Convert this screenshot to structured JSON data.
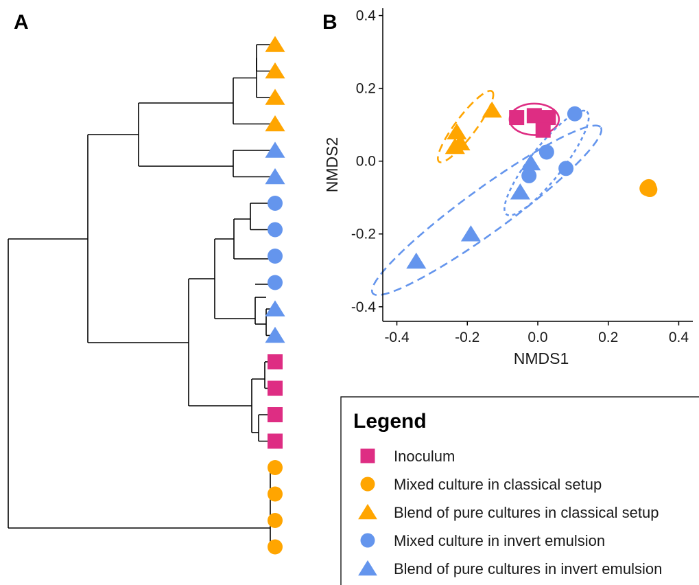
{
  "colors": {
    "inoculum": "#DE2D83",
    "classical": "#FFA500",
    "invert": "#6495ED"
  },
  "panel_a": {
    "label": "A"
  },
  "panel_b": {
    "label": "B"
  },
  "chart_data": [
    {
      "type": "dendrogram",
      "panel": "A",
      "leaves": [
        {
          "group": "blend_classical"
        },
        {
          "group": "blend_classical"
        },
        {
          "group": "blend_classical"
        },
        {
          "group": "blend_classical"
        },
        {
          "group": "blend_invert"
        },
        {
          "group": "blend_invert"
        },
        {
          "group": "mixed_invert"
        },
        {
          "group": "mixed_invert"
        },
        {
          "group": "mixed_invert"
        },
        {
          "group": "mixed_invert"
        },
        {
          "group": "blend_invert"
        },
        {
          "group": "blend_invert"
        },
        {
          "group": "inoculum"
        },
        {
          "group": "inoculum"
        },
        {
          "group": "inoculum"
        },
        {
          "group": "inoculum"
        },
        {
          "group": "mixed_classical"
        },
        {
          "group": "mixed_classical"
        },
        {
          "group": "mixed_classical"
        },
        {
          "group": "mixed_classical"
        }
      ]
    },
    {
      "type": "scatter",
      "panel": "B",
      "xlabel": "NMDS1",
      "ylabel": "NMDS2",
      "xlim": [
        -0.44,
        0.44
      ],
      "ylim": [
        -0.44,
        0.42
      ],
      "xticks": [
        "-0.4",
        "-0.2",
        "0.0",
        "0.2",
        "0.4"
      ],
      "xtick_values": [
        -0.4,
        -0.2,
        0.0,
        0.2,
        0.4
      ],
      "yticks": [
        "0.4",
        "0.2",
        "0.0",
        "-0.2",
        "-0.4"
      ],
      "ytick_values": [
        0.4,
        0.2,
        0.0,
        -0.2,
        -0.4
      ],
      "grid": false,
      "series": [
        {
          "group": "inoculum",
          "points": [
            [
              -0.06,
              0.12
            ],
            [
              -0.01,
              0.125
            ],
            [
              0.03,
              0.12
            ],
            [
              0.015,
              0.085
            ]
          ]
        },
        {
          "group": "mixed_classical",
          "points": [
            [
              0.31,
              -0.075
            ],
            [
              0.315,
              -0.07
            ],
            [
              0.318,
              -0.078
            ],
            [
              0.312,
              -0.072
            ]
          ]
        },
        {
          "group": "blend_classical",
          "points": [
            [
              -0.23,
              0.08
            ],
            [
              -0.22,
              0.05
            ],
            [
              -0.235,
              0.04
            ],
            [
              -0.13,
              0.14
            ]
          ]
        },
        {
          "group": "mixed_invert",
          "points": [
            [
              0.105,
              0.13
            ],
            [
              0.025,
              0.025
            ],
            [
              -0.025,
              -0.04
            ],
            [
              0.08,
              -0.02
            ]
          ]
        },
        {
          "group": "blend_invert",
          "points": [
            [
              -0.02,
              -0.005
            ],
            [
              -0.05,
              -0.085
            ],
            [
              -0.19,
              -0.2
            ],
            [
              -0.345,
              -0.275
            ]
          ]
        }
      ],
      "ellipses": [
        {
          "group": "inoculum",
          "style": "solid",
          "cx": -0.01,
          "cy": 0.115,
          "rx": 0.07,
          "ry": 0.043,
          "angle": 0
        },
        {
          "group": "blend_classical",
          "style": "dashed",
          "cx": -0.205,
          "cy": 0.095,
          "rx": 0.125,
          "ry": 0.028,
          "angle": 53
        },
        {
          "group": "invert_mixed",
          "style": "dotted",
          "cx": 0.025,
          "cy": -0.005,
          "rx": 0.185,
          "ry": 0.045,
          "angle": 52
        },
        {
          "group": "invert_blend",
          "style": "dashed",
          "cx": -0.145,
          "cy": -0.135,
          "rx": 0.4,
          "ry": 0.06,
          "angle": 36
        }
      ]
    }
  ],
  "legend": {
    "title": "Legend",
    "items": [
      {
        "label": "Inoculum",
        "shape": "square",
        "group": "inoculum"
      },
      {
        "label": "Mixed culture in classical setup",
        "shape": "circle",
        "group": "classical"
      },
      {
        "label": "Blend of pure cultures in classical setup",
        "shape": "triangle",
        "group": "classical"
      },
      {
        "label": "Mixed culture in invert emulsion",
        "shape": "circle",
        "group": "invert"
      },
      {
        "label": "Blend of pure cultures in invert emulsion",
        "shape": "triangle",
        "group": "invert"
      }
    ]
  }
}
